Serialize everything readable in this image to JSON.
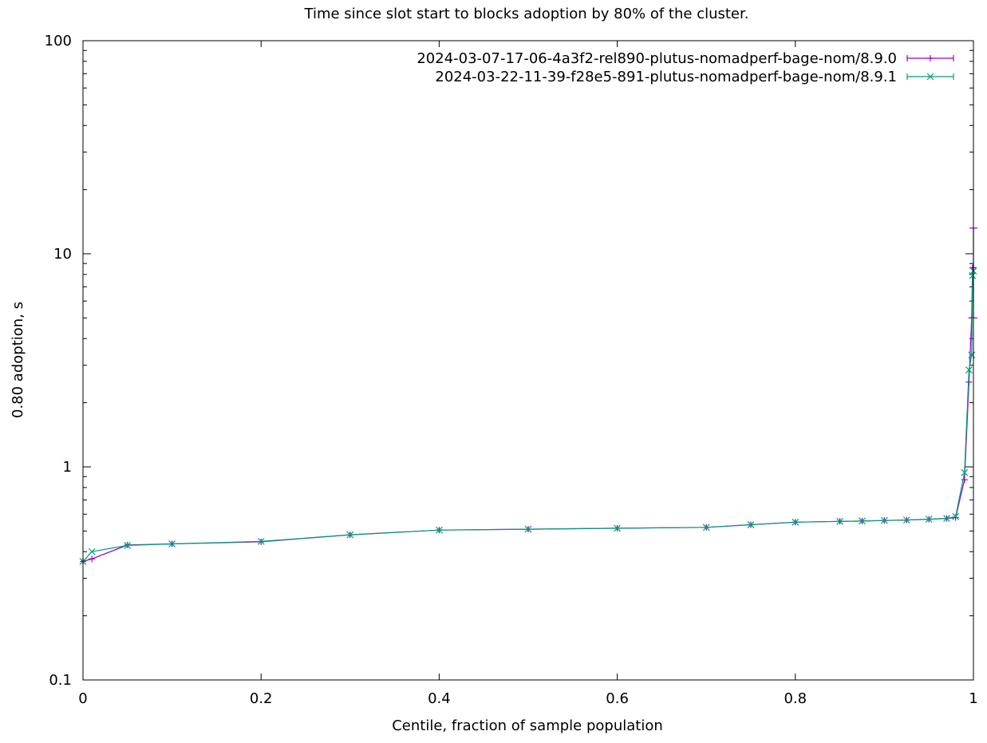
{
  "chart_data": {
    "type": "line",
    "title": "Time since slot start to blocks adoption by 80% of the cluster.",
    "xlabel": "Centile, fraction of sample population",
    "ylabel": "0.80 adoption, s",
    "xlim": [
      0,
      1
    ],
    "ylim": [
      0.1,
      100
    ],
    "yscale": "log",
    "grid": false,
    "legend_position": "top-right",
    "x_ticks": [
      {
        "value": 0,
        "label": "0"
      },
      {
        "value": 0.2,
        "label": "0.2"
      },
      {
        "value": 0.4,
        "label": "0.4"
      },
      {
        "value": 0.6,
        "label": "0.6"
      },
      {
        "value": 0.8,
        "label": "0.8"
      },
      {
        "value": 1,
        "label": "1"
      }
    ],
    "y_ticks": [
      {
        "value": 0.1,
        "label": "0.1"
      },
      {
        "value": 1,
        "label": "1"
      },
      {
        "value": 10,
        "label": "10"
      },
      {
        "value": 100,
        "label": "100"
      }
    ],
    "series": [
      {
        "name": "2024-03-07-17-06-4a3f2-rel890-plutus-nomadperf-bage-nom/8.9.0",
        "color": "#9400d3",
        "marker": "plus",
        "x": [
          0,
          0.01,
          0.05,
          0.1,
          0.2,
          0.3,
          0.4,
          0.5,
          0.6,
          0.7,
          0.75,
          0.8,
          0.85,
          0.875,
          0.9,
          0.925,
          0.95,
          0.97,
          0.98,
          0.99,
          0.995,
          0.998,
          0.999,
          1.0
        ],
        "y": [
          0.36,
          0.37,
          0.43,
          0.435,
          0.445,
          0.48,
          0.505,
          0.51,
          0.515,
          0.52,
          0.535,
          0.55,
          0.555,
          0.557,
          0.56,
          0.563,
          0.568,
          0.573,
          0.578,
          0.87,
          2.5,
          5.0,
          8.6,
          8.6
        ],
        "error_bars": [
          {
            "x": 1.0,
            "low": 5.0,
            "high": 13.2
          }
        ]
      },
      {
        "name": "2024-03-22-11-39-f28e5-891-plutus-nomadperf-bage-nom/8.9.1",
        "color": "#009e73",
        "marker": "cross",
        "x": [
          0,
          0.01,
          0.05,
          0.1,
          0.2,
          0.3,
          0.4,
          0.5,
          0.6,
          0.7,
          0.75,
          0.8,
          0.85,
          0.875,
          0.9,
          0.925,
          0.95,
          0.97,
          0.98,
          0.99,
          0.995,
          0.998,
          0.999,
          1.0
        ],
        "y": [
          0.36,
          0.4,
          0.428,
          0.435,
          0.447,
          0.48,
          0.505,
          0.51,
          0.515,
          0.52,
          0.535,
          0.55,
          0.555,
          0.557,
          0.56,
          0.563,
          0.568,
          0.573,
          0.585,
          0.94,
          2.85,
          3.35,
          7.9,
          8.3
        ],
        "error_bars": []
      }
    ]
  }
}
